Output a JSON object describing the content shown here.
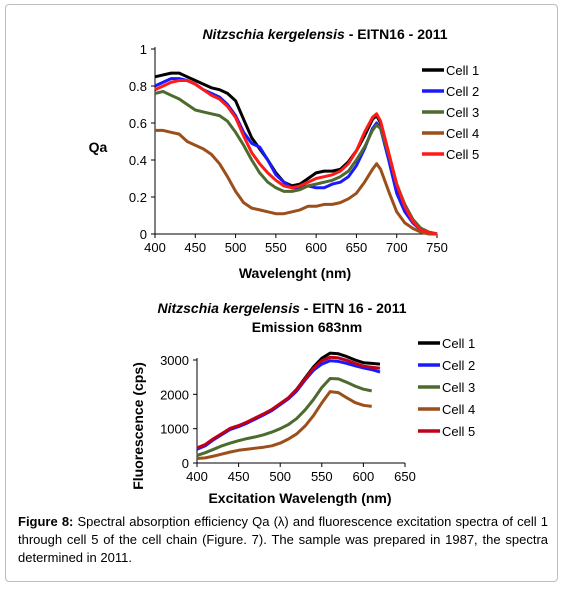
{
  "figure_number": "Figure 8:",
  "caption_text": " Spectral absorption efficiency Qa (λ) and fluorescence excitation spectra of cell 1 through cell 5 of the cell chain (Figure. 7). The sample was prepared in 1987, the spectra determined in 2011.",
  "chart_data": [
    {
      "type": "line",
      "title_italic": "Nitzschia kergelensis",
      "title_rest": " - EITN16 - 2011",
      "xlabel": "Wavelenght (nm)",
      "ylabel": "Qa",
      "xlim": [
        400,
        750
      ],
      "ylim": [
        0,
        1
      ],
      "xticks": [
        "400",
        "450",
        "500",
        "550",
        "600",
        "650",
        "700",
        "750"
      ],
      "yticks": [
        "0",
        "0.2",
        "0.4",
        "0.6",
        "0.8",
        "1"
      ],
      "legend_position": "top-right",
      "series": [
        {
          "name": "Cell 1",
          "color": "#000000",
          "x": [
            400,
            410,
            420,
            430,
            440,
            450,
            460,
            470,
            480,
            490,
            500,
            510,
            520,
            530,
            540,
            550,
            560,
            570,
            580,
            590,
            600,
            610,
            620,
            630,
            640,
            650,
            660,
            670,
            675,
            680,
            690,
            700,
            710,
            720,
            730,
            740,
            750
          ],
          "y": [
            0.85,
            0.86,
            0.87,
            0.87,
            0.85,
            0.83,
            0.81,
            0.79,
            0.78,
            0.76,
            0.72,
            0.62,
            0.52,
            0.46,
            0.4,
            0.33,
            0.28,
            0.26,
            0.27,
            0.3,
            0.33,
            0.34,
            0.34,
            0.35,
            0.39,
            0.45,
            0.53,
            0.62,
            0.64,
            0.6,
            0.42,
            0.25,
            0.14,
            0.07,
            0.03,
            0.01,
            0.0
          ]
        },
        {
          "name": "Cell 2",
          "color": "#1a1aff",
          "x": [
            400,
            410,
            420,
            430,
            440,
            450,
            460,
            470,
            480,
            490,
            500,
            510,
            520,
            530,
            540,
            550,
            560,
            570,
            580,
            590,
            600,
            610,
            620,
            630,
            640,
            650,
            660,
            670,
            675,
            680,
            690,
            700,
            710,
            720,
            730,
            740,
            750
          ],
          "y": [
            0.8,
            0.82,
            0.84,
            0.84,
            0.83,
            0.81,
            0.78,
            0.76,
            0.74,
            0.7,
            0.64,
            0.55,
            0.49,
            0.47,
            0.4,
            0.32,
            0.28,
            0.25,
            0.25,
            0.26,
            0.25,
            0.25,
            0.27,
            0.28,
            0.31,
            0.37,
            0.46,
            0.57,
            0.6,
            0.57,
            0.4,
            0.22,
            0.12,
            0.06,
            0.02,
            0.01,
            0.0
          ]
        },
        {
          "name": "Cell 3",
          "color": "#4d6b2e",
          "x": [
            400,
            410,
            420,
            430,
            440,
            450,
            460,
            470,
            480,
            490,
            500,
            510,
            520,
            530,
            540,
            550,
            560,
            570,
            580,
            590,
            600,
            610,
            620,
            630,
            640,
            650,
            660,
            670,
            675,
            680,
            690,
            700,
            710,
            720,
            730,
            740,
            750
          ],
          "y": [
            0.76,
            0.77,
            0.75,
            0.73,
            0.7,
            0.67,
            0.66,
            0.65,
            0.64,
            0.61,
            0.55,
            0.48,
            0.4,
            0.33,
            0.28,
            0.25,
            0.23,
            0.23,
            0.24,
            0.26,
            0.27,
            0.28,
            0.29,
            0.31,
            0.34,
            0.4,
            0.47,
            0.56,
            0.59,
            0.57,
            0.43,
            0.27,
            0.16,
            0.08,
            0.03,
            0.01,
            0.0
          ]
        },
        {
          "name": "Cell 4",
          "color": "#9b4f1a",
          "x": [
            400,
            410,
            420,
            430,
            440,
            450,
            460,
            470,
            480,
            490,
            500,
            510,
            520,
            530,
            540,
            550,
            560,
            570,
            580,
            590,
            600,
            610,
            620,
            630,
            640,
            650,
            660,
            670,
            675,
            680,
            690,
            700,
            710,
            720,
            730,
            740,
            750
          ],
          "y": [
            0.56,
            0.56,
            0.55,
            0.54,
            0.5,
            0.48,
            0.46,
            0.43,
            0.38,
            0.31,
            0.23,
            0.17,
            0.14,
            0.13,
            0.12,
            0.11,
            0.11,
            0.12,
            0.13,
            0.15,
            0.15,
            0.16,
            0.16,
            0.17,
            0.19,
            0.22,
            0.28,
            0.35,
            0.38,
            0.35,
            0.23,
            0.12,
            0.06,
            0.03,
            0.01,
            0.0,
            0.0
          ]
        },
        {
          "name": "Cell 5",
          "color": "#ff1a1a",
          "x": [
            400,
            410,
            420,
            430,
            440,
            450,
            460,
            470,
            480,
            490,
            500,
            510,
            520,
            530,
            540,
            550,
            560,
            570,
            580,
            590,
            600,
            610,
            620,
            630,
            640,
            650,
            660,
            670,
            675,
            680,
            690,
            700,
            710,
            720,
            730,
            740,
            750
          ],
          "y": [
            0.78,
            0.8,
            0.82,
            0.83,
            0.83,
            0.81,
            0.78,
            0.75,
            0.73,
            0.69,
            0.63,
            0.53,
            0.44,
            0.38,
            0.33,
            0.29,
            0.26,
            0.25,
            0.26,
            0.28,
            0.3,
            0.31,
            0.32,
            0.34,
            0.38,
            0.45,
            0.55,
            0.63,
            0.65,
            0.61,
            0.44,
            0.27,
            0.15,
            0.07,
            0.02,
            0.01,
            0.0
          ]
        }
      ]
    },
    {
      "type": "line",
      "title_italic": "Nitzschia kergelensis",
      "title_rest": " - EITN 16 - 2011",
      "subtitle": "Emission 683nm",
      "xlabel": "Excitation Wavelength (nm)",
      "ylabel": "Fluorescence (cps)",
      "xlim": [
        400,
        650
      ],
      "ylim": [
        0,
        3000
      ],
      "xticks": [
        "400",
        "450",
        "500",
        "550",
        "600",
        "650"
      ],
      "yticks": [
        "0",
        "1000",
        "2000",
        "3000"
      ],
      "legend_position": "right",
      "series": [
        {
          "name": "Cell 1",
          "color": "#000000",
          "x": [
            400,
            410,
            420,
            430,
            440,
            450,
            460,
            470,
            480,
            490,
            500,
            510,
            520,
            530,
            540,
            550,
            560,
            570,
            580,
            590,
            600,
            610,
            620
          ],
          "y": [
            420,
            520,
            700,
            850,
            1000,
            1080,
            1180,
            1300,
            1420,
            1550,
            1720,
            1900,
            2150,
            2480,
            2800,
            3050,
            3200,
            3180,
            3100,
            3000,
            2920,
            2900,
            2880
          ]
        },
        {
          "name": "Cell 2",
          "color": "#1a1aff",
          "x": [
            400,
            410,
            420,
            430,
            440,
            450,
            460,
            470,
            480,
            490,
            500,
            510,
            520,
            530,
            540,
            550,
            560,
            570,
            580,
            590,
            600,
            610,
            620
          ],
          "y": [
            400,
            500,
            680,
            830,
            980,
            1060,
            1160,
            1280,
            1400,
            1530,
            1700,
            1870,
            2100,
            2420,
            2700,
            2880,
            2980,
            2960,
            2900,
            2830,
            2770,
            2720,
            2650
          ]
        },
        {
          "name": "Cell 3",
          "color": "#4d6b2e",
          "x": [
            400,
            410,
            420,
            430,
            440,
            450,
            460,
            470,
            480,
            490,
            500,
            510,
            520,
            530,
            540,
            550,
            560,
            570,
            580,
            590,
            600,
            610
          ],
          "y": [
            220,
            300,
            400,
            500,
            580,
            650,
            710,
            760,
            820,
            900,
            1000,
            1120,
            1300,
            1550,
            1850,
            2200,
            2460,
            2450,
            2350,
            2240,
            2150,
            2100
          ]
        },
        {
          "name": "Cell 4",
          "color": "#9b4f1a",
          "x": [
            400,
            410,
            420,
            430,
            440,
            450,
            460,
            470,
            480,
            490,
            500,
            510,
            520,
            530,
            540,
            550,
            560,
            570,
            580,
            590,
            600,
            610
          ],
          "y": [
            130,
            150,
            200,
            260,
            320,
            370,
            400,
            430,
            460,
            500,
            580,
            700,
            850,
            1080,
            1380,
            1750,
            2080,
            2050,
            1900,
            1760,
            1680,
            1650
          ]
        },
        {
          "name": "Cell 5",
          "color": "#c00018",
          "x": [
            400,
            410,
            420,
            430,
            440,
            450,
            460,
            470,
            480,
            490,
            500,
            510,
            520,
            530,
            540,
            550,
            560,
            570,
            580,
            590,
            600,
            610,
            620
          ],
          "y": [
            440,
            540,
            710,
            860,
            1010,
            1090,
            1190,
            1310,
            1430,
            1560,
            1730,
            1900,
            2140,
            2450,
            2760,
            2980,
            3080,
            3060,
            2990,
            2900,
            2820,
            2790,
            2760
          ]
        }
      ]
    }
  ]
}
